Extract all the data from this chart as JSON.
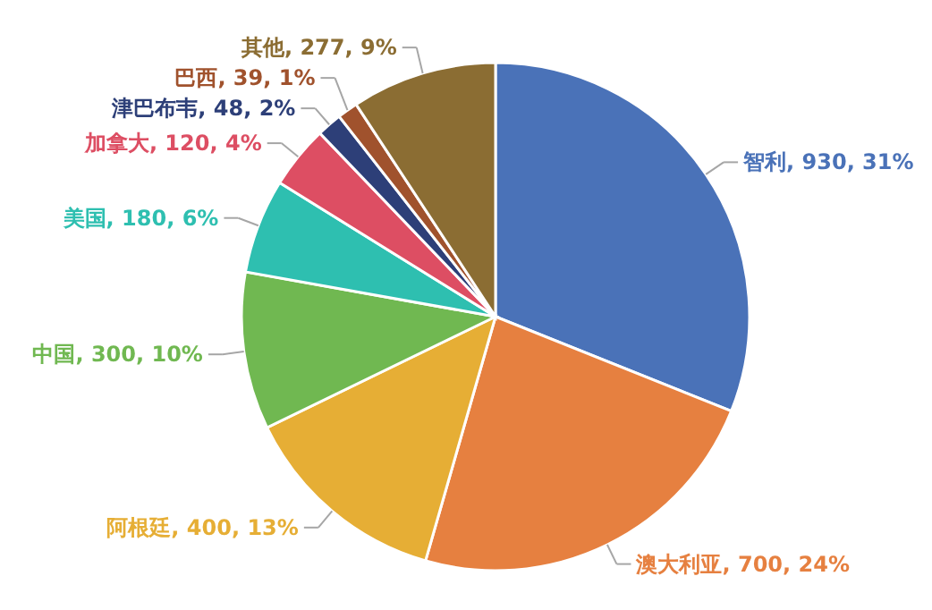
{
  "chart_data": {
    "type": "pie",
    "categories": [
      "智利",
      "澳大利亚",
      "阿根廷",
      "中国",
      "美国",
      "加拿大",
      "津巴布韦",
      "巴西",
      "其他"
    ],
    "values": [
      930,
      700,
      400,
      300,
      180,
      120,
      48,
      39,
      277
    ],
    "colors": [
      "#4a72b8",
      "#e68040",
      "#e6ae35",
      "#70b851",
      "#2ebfb0",
      "#dd4e63",
      "#2d3f78",
      "#a0522d",
      "#8b6d33"
    ],
    "value_labels": [
      "930, 31%",
      "700, 24%",
      "400, 13%",
      "300, 10%",
      "180, 6%",
      "120, 4%",
      "48, 2%",
      "39, 1%",
      "277, 9%"
    ],
    "legend": false
  }
}
